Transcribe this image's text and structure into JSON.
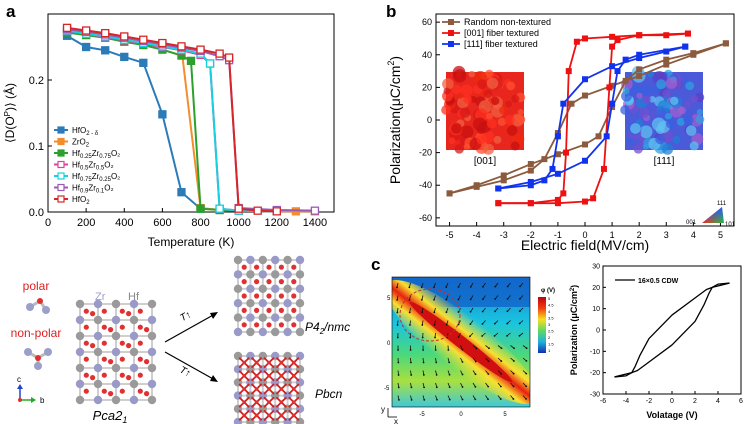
{
  "panels": {
    "a": "a",
    "b": "b",
    "c": "c"
  },
  "colors": {
    "hfo2_delta": "#2b7bb9",
    "zro2": "#f28e2b",
    "hf025": "#2ca02c",
    "hf05": "#e0429d",
    "hf075": "#17d1e0",
    "hf09": "#9b59b6",
    "hfo2": "#d62728",
    "random": "#8c5a3c",
    "fiber001": "#ee1111",
    "fiber111": "#1133ee"
  },
  "chart_data": [
    {
      "id": "a",
      "type": "line",
      "title": "",
      "xlabel": "Temperature (K)",
      "ylabel_main": "⟨D(O",
      "ylabel_sup": "P",
      "ylabel_tail": ")⟩ (Å)",
      "xlim": [
        0,
        1500
      ],
      "ylim": [
        0,
        0.3
      ],
      "xticks": [
        "0",
        "200",
        "400",
        "600",
        "800",
        "1000",
        "1200",
        "1400"
      ],
      "yticks": [
        "0.0",
        "0.1",
        "0.2"
      ],
      "legend": [
        {
          "base": "HfO",
          "sub": "2 - δ",
          "tail": "",
          "sub2": "",
          "tail2": ""
        },
        {
          "base": "ZrO",
          "sub": "2",
          "tail": "",
          "sub2": "",
          "tail2": ""
        },
        {
          "base": "Hf",
          "sub": "0.25",
          "tail": "Zr",
          "sub2": "0.75",
          "tail2": "O₂"
        },
        {
          "base": "Hf",
          "sub": "0.5",
          "tail": "Zr",
          "sub2": "0.5",
          "tail2": "O₂"
        },
        {
          "base": "Hf",
          "sub": "0.75",
          "tail": "Zr",
          "sub2": "0.25",
          "tail2": "O₂"
        },
        {
          "base": "Hf",
          "sub": "0.9",
          "tail": "Zr",
          "sub2": "0.1",
          "tail2": "O₂"
        },
        {
          "base": "HfO",
          "sub": "2",
          "tail": "",
          "sub2": "",
          "tail2": ""
        }
      ],
      "series": [
        {
          "key": "hfo2_delta",
          "x": [
            100,
            200,
            300,
            400,
            500,
            600,
            700,
            800,
            1000,
            1200
          ],
          "y": [
            0.267,
            0.25,
            0.245,
            0.235,
            0.226,
            0.148,
            0.03,
            0.005,
            0.002,
            0.001
          ]
        },
        {
          "key": "zro2",
          "x": [
            100,
            200,
            300,
            400,
            500,
            600,
            700,
            800,
            900,
            1000,
            1200,
            1300,
            1400
          ],
          "y": [
            0.277,
            0.273,
            0.27,
            0.265,
            0.26,
            0.255,
            0.248,
            0.006,
            0.003,
            0.002,
            0.001,
            0.001,
            0.001
          ]
        },
        {
          "key": "hf025",
          "x": [
            100,
            200,
            300,
            400,
            500,
            600,
            700,
            750,
            800,
            900,
            1000,
            1200
          ],
          "y": [
            0.272,
            0.268,
            0.264,
            0.258,
            0.253,
            0.246,
            0.237,
            0.229,
            0.005,
            0.003,
            0.002,
            0.001
          ]
        },
        {
          "key": "hf05",
          "x": [
            100,
            200,
            300,
            400,
            500,
            600,
            700,
            800,
            850,
            900,
            1000,
            1200
          ],
          "y": [
            0.274,
            0.27,
            0.265,
            0.26,
            0.255,
            0.25,
            0.245,
            0.238,
            0.225,
            0.005,
            0.002,
            0.001
          ]
        },
        {
          "key": "hf075",
          "x": [
            100,
            200,
            300,
            400,
            500,
            600,
            700,
            800,
            850,
            900,
            1000,
            1200
          ],
          "y": [
            0.275,
            0.27,
            0.266,
            0.261,
            0.256,
            0.251,
            0.246,
            0.24,
            0.225,
            0.005,
            0.002,
            0.001
          ]
        },
        {
          "key": "hf09",
          "x": [
            100,
            200,
            300,
            400,
            500,
            600,
            700,
            800,
            900,
            950,
            1000,
            1200,
            1400
          ],
          "y": [
            0.277,
            0.273,
            0.269,
            0.264,
            0.259,
            0.254,
            0.249,
            0.244,
            0.236,
            0.23,
            0.006,
            0.003,
            0.002
          ]
        },
        {
          "key": "hfo2",
          "x": [
            100,
            200,
            300,
            400,
            500,
            600,
            700,
            800,
            900,
            950,
            1000,
            1100,
            1200
          ],
          "y": [
            0.279,
            0.275,
            0.271,
            0.266,
            0.261,
            0.256,
            0.251,
            0.246,
            0.24,
            0.234,
            0.005,
            0.002,
            0.001
          ]
        }
      ]
    },
    {
      "id": "b",
      "type": "line",
      "xlabel": "Electric field(MV/cm)",
      "ylabel_main": "Polarization(μC/cm",
      "ylabel_sup": "2",
      "ylabel_tail": ")",
      "xlim": [
        -5.5,
        5.5
      ],
      "ylim": [
        -65,
        65
      ],
      "xticks": [
        "-5",
        "-4",
        "-3",
        "-2",
        "-1",
        "0",
        "1",
        "2",
        "3",
        "4",
        "5"
      ],
      "yticks": [
        "-60",
        "-40",
        "-20",
        "0",
        "20",
        "40",
        "60"
      ],
      "legend": [
        "Random non-textured",
        "[001] fiber textured",
        "[111] fiber textured"
      ],
      "insets": [
        "[001]",
        "[111]"
      ],
      "triangle": {
        "top": "111",
        "left": "001",
        "right": "101"
      },
      "series": [
        {
          "key": "random",
          "x": [
            -5,
            -4,
            -3,
            -2,
            -1.5,
            -1,
            -0.5,
            0,
            1,
            2,
            3,
            4,
            5.2
          ],
          "y": [
            -45,
            -41,
            -37,
            -31,
            -24,
            -8,
            10,
            15,
            21,
            27,
            34,
            40,
            47
          ]
        },
        {
          "key": "random",
          "x": [
            5.2,
            4,
            3,
            2,
            1.5,
            1,
            0.5,
            0,
            -1,
            -2,
            -3,
            -4,
            -5
          ],
          "y": [
            47,
            41,
            37,
            31,
            24,
            8,
            -10,
            -15,
            -21,
            -27,
            -34,
            -40,
            -45
          ]
        },
        {
          "key": "fiber001",
          "x": [
            -3.2,
            -2,
            -1,
            -0.8,
            -0.7,
            -0.6,
            -0.3,
            0,
            1,
            2,
            3,
            3.8
          ],
          "y": [
            -51,
            -51,
            -49,
            -45,
            -20,
            30,
            48,
            50,
            51,
            52,
            52,
            53
          ]
        },
        {
          "key": "fiber001",
          "x": [
            3.8,
            2,
            1.2,
            1,
            0.9,
            0.7,
            0.3,
            0,
            -1,
            -2,
            -3.2
          ],
          "y": [
            53,
            52,
            49,
            45,
            20,
            -30,
            -48,
            -50,
            -51,
            -51,
            -51
          ]
        },
        {
          "key": "fiber111",
          "x": [
            -3.2,
            -2,
            -1.5,
            -1.2,
            -1,
            -0.8,
            0,
            1,
            2,
            3,
            3.7
          ],
          "y": [
            -42,
            -40,
            -37,
            -30,
            -10,
            10,
            25,
            33,
            38,
            42,
            45
          ]
        },
        {
          "key": "fiber111",
          "x": [
            3.7,
            2,
            1.5,
            1.2,
            1,
            0.8,
            0,
            -1,
            -2,
            -3.2
          ],
          "y": [
            45,
            40,
            37,
            30,
            10,
            -10,
            -25,
            -33,
            -38,
            -42
          ]
        }
      ]
    },
    {
      "id": "c-right",
      "type": "line",
      "xlabel": "Volatage (V)",
      "ylabel_main": "Polarization (μC/cm",
      "ylabel_sup": "2",
      "ylabel_tail": ")",
      "xlim": [
        -6,
        6
      ],
      "ylim": [
        -30,
        30
      ],
      "xticks": [
        "-6",
        "-4",
        "-2",
        "0",
        "2",
        "4",
        "6"
      ],
      "yticks": [
        "-30",
        "-20",
        "-10",
        "0",
        "10",
        "20",
        "30"
      ],
      "legend": [
        "16×0.5 CDW"
      ],
      "series": [
        {
          "key": "loop",
          "x": [
            -5,
            -4,
            -3.5,
            -3.2,
            -2.8,
            -2,
            0,
            2,
            3,
            3.5,
            5
          ],
          "y": [
            -22,
            -21.5,
            -20,
            -17,
            -12,
            -4,
            7,
            15,
            19,
            20,
            22
          ]
        },
        {
          "key": "loop",
          "x": [
            5,
            4,
            3.5,
            3.2,
            2.8,
            2,
            0,
            -2,
            -3,
            -3.5,
            -5
          ],
          "y": [
            22,
            21.5,
            20,
            17,
            12,
            4,
            -7,
            -15,
            -19,
            -20,
            -22
          ]
        }
      ]
    }
  ],
  "structures": {
    "polar": "polar",
    "nonpolar": "non-polar",
    "zr": "Zr",
    "hf": "Hf",
    "pca21": "Pca2",
    "pca21_sub": "1",
    "p42nmc": "P4",
    "p42nmc_sub": "2",
    "p42nmc_tail": "/nmc",
    "pbcn": "Pbcn",
    "arrow_label": "T↑",
    "axis_c": "c",
    "axis_b": "b"
  },
  "colormap": {
    "title": "φ (V)",
    "ticks": [
      "5",
      "4.5",
      "4",
      "3.5",
      "3",
      "2.5",
      "2",
      "1.5",
      "1"
    ],
    "xticks": [
      "-5",
      "0",
      "5"
    ],
    "yticks": [
      "5",
      "0",
      "-5"
    ],
    "xaxis": "x",
    "yaxis": "y"
  }
}
